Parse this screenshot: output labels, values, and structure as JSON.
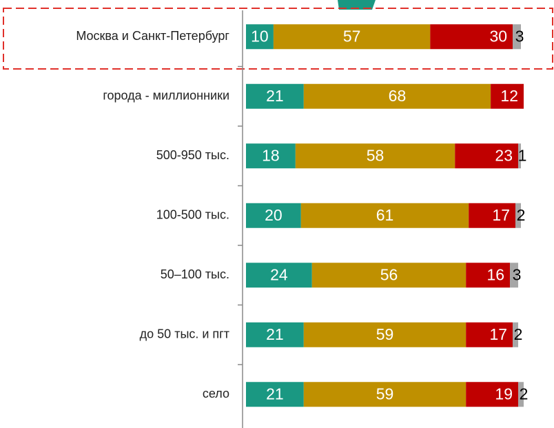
{
  "chart_data": {
    "type": "stacked-bar-horizontal",
    "categories": [
      "Москва и Санкт-Петербург",
      "города - миллионники",
      "500-950 тыс.",
      "100-500 тыс.",
      "50–100 тыс.",
      "до 50 тыс. и пгт",
      "село"
    ],
    "series": [
      {
        "color": "#1a9882",
        "values": [
          10,
          21,
          18,
          20,
          24,
          21,
          21
        ]
      },
      {
        "color": "#bf9000",
        "values": [
          57,
          68,
          58,
          61,
          56,
          59,
          59
        ]
      },
      {
        "color": "#c00000",
        "values": [
          30,
          12,
          23,
          17,
          16,
          17,
          19
        ]
      },
      {
        "color": "#a6a6a6",
        "values": [
          3,
          null,
          1,
          2,
          3,
          2,
          2
        ]
      }
    ]
  }
}
